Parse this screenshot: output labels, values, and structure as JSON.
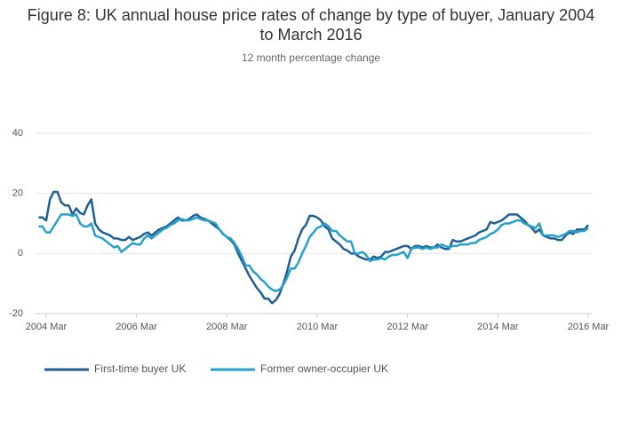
{
  "chart_data": {
    "type": "line",
    "title": "Figure 8: UK annual house price rates of change by type of buyer, January 2004 to March 2016",
    "subtitle": "12 month percentage change",
    "x": [
      "2004 Jan",
      "2004 Feb",
      "2004 Mar",
      "2004 Apr",
      "2004 May",
      "2004 Jun",
      "2004 Jul",
      "2004 Aug",
      "2004 Sep",
      "2004 Oct",
      "2004 Nov",
      "2004 Dec",
      "2005 Jan",
      "2005 Feb",
      "2005 Mar",
      "2005 Apr",
      "2005 May",
      "2005 Jun",
      "2005 Jul",
      "2005 Aug",
      "2005 Sep",
      "2005 Oct",
      "2005 Nov",
      "2005 Dec",
      "2006 Jan",
      "2006 Feb",
      "2006 Mar",
      "2006 Apr",
      "2006 May",
      "2006 Jun",
      "2006 Jul",
      "2006 Aug",
      "2006 Sep",
      "2006 Oct",
      "2006 Nov",
      "2006 Dec",
      "2007 Jan",
      "2007 Feb",
      "2007 Mar",
      "2007 Apr",
      "2007 May",
      "2007 Jun",
      "2007 Jul",
      "2007 Aug",
      "2007 Sep",
      "2007 Oct",
      "2007 Nov",
      "2007 Dec",
      "2008 Jan",
      "2008 Feb",
      "2008 Mar",
      "2008 Apr",
      "2008 May",
      "2008 Jun",
      "2008 Jul",
      "2008 Aug",
      "2008 Sep",
      "2008 Oct",
      "2008 Nov",
      "2008 Dec",
      "2009 Jan",
      "2009 Feb",
      "2009 Mar",
      "2009 Apr",
      "2009 May",
      "2009 Jun",
      "2009 Jul",
      "2009 Aug",
      "2009 Sep",
      "2009 Oct",
      "2009 Nov",
      "2009 Dec",
      "2010 Jan",
      "2010 Feb",
      "2010 Mar",
      "2010 Apr",
      "2010 May",
      "2010 Jun",
      "2010 Jul",
      "2010 Aug",
      "2010 Sep",
      "2010 Oct",
      "2010 Nov",
      "2010 Dec",
      "2011 Jan",
      "2011 Feb",
      "2011 Mar",
      "2011 Apr",
      "2011 May",
      "2011 Jun",
      "2011 Jul",
      "2011 Aug",
      "2011 Sep",
      "2011 Oct",
      "2011 Nov",
      "2011 Dec",
      "2012 Jan",
      "2012 Feb",
      "2012 Mar",
      "2012 Apr",
      "2012 May",
      "2012 Jun",
      "2012 Jul",
      "2012 Aug",
      "2012 Sep",
      "2012 Oct",
      "2012 Nov",
      "2012 Dec",
      "2013 Jan",
      "2013 Feb",
      "2013 Mar",
      "2013 Apr",
      "2013 May",
      "2013 Jun",
      "2013 Jul",
      "2013 Aug",
      "2013 Sep",
      "2013 Oct",
      "2013 Nov",
      "2013 Dec",
      "2014 Jan",
      "2014 Feb",
      "2014 Mar",
      "2014 Apr",
      "2014 May",
      "2014 Jun",
      "2014 Jul",
      "2014 Aug",
      "2014 Sep",
      "2014 Oct",
      "2014 Nov",
      "2014 Dec",
      "2015 Jan",
      "2015 Feb",
      "2015 Mar",
      "2015 Apr",
      "2015 May",
      "2015 Jun",
      "2015 Jul",
      "2015 Aug",
      "2015 Sep",
      "2015 Oct",
      "2015 Nov",
      "2015 Dec",
      "2016 Jan",
      "2016 Feb",
      "2016 Mar"
    ],
    "xticks": [
      "2004 Mar",
      "2006 Mar",
      "2008 Mar",
      "2010 Mar",
      "2012 Mar",
      "2014 Mar",
      "2016 Mar"
    ],
    "ylim": [
      -20,
      40
    ],
    "yticks": [
      -20,
      0,
      20,
      40
    ],
    "grid": true,
    "series": [
      {
        "name": "First-time buyer UK",
        "color": "#206095",
        "values": [
          12,
          12,
          11,
          18,
          20.5,
          20.5,
          17,
          16,
          16,
          13,
          15,
          13.5,
          13,
          16,
          18,
          10,
          8,
          7,
          6.5,
          6,
          5,
          5,
          4.5,
          4.5,
          5.5,
          4.5,
          5,
          5.5,
          6.5,
          7,
          6,
          7,
          8,
          8.5,
          9,
          10,
          11,
          12,
          11,
          11,
          11.5,
          12.5,
          13,
          12,
          11.5,
          11,
          10,
          9,
          8,
          6.5,
          5.5,
          4.5,
          3,
          0,
          -2.5,
          -5,
          -7.5,
          -9.5,
          -11.5,
          -13,
          -15,
          -15,
          -16.5,
          -15.5,
          -13.5,
          -10,
          -6,
          -1,
          1,
          5,
          8,
          9.5,
          12.5,
          12.5,
          12,
          11,
          9,
          8,
          5,
          4,
          3,
          1.5,
          1,
          0,
          0,
          -1,
          -1.5,
          -2,
          -2,
          -1,
          -1.5,
          -1,
          0.5,
          0.5,
          1,
          1.5,
          2,
          2.5,
          2.5,
          1.5,
          2.5,
          2.5,
          2,
          2.5,
          2,
          2,
          3,
          2,
          1.5,
          1.5,
          4.5,
          4,
          4,
          4.5,
          5,
          5.5,
          6,
          7,
          7.5,
          8,
          10.5,
          10,
          10.5,
          11,
          12,
          13,
          13,
          13,
          12,
          11,
          9.5,
          8.5,
          7,
          8,
          6,
          5.5,
          5,
          5,
          4.5,
          4.5,
          6,
          7,
          6.5,
          8,
          8,
          8,
          9.5
        ]
      },
      {
        "name": "Former owner-occupier UK",
        "color": "#27a0cc",
        "values": [
          9,
          9,
          7,
          7,
          9,
          11,
          13,
          13,
          13,
          12.5,
          13,
          10,
          9,
          9,
          10,
          6,
          5.5,
          5,
          4,
          3,
          2,
          2.5,
          0.5,
          1.5,
          2.5,
          3.5,
          3,
          3,
          5,
          6,
          5,
          6,
          7,
          8,
          8.5,
          9.5,
          10,
          11,
          11.5,
          11,
          11,
          11.5,
          12,
          11.5,
          11,
          11,
          10.5,
          10,
          8,
          6.5,
          5.5,
          5,
          3.5,
          1.5,
          -1,
          -4,
          -4,
          -6,
          -7,
          -8.5,
          -9.5,
          -11,
          -12,
          -12.5,
          -12,
          -10.5,
          -8,
          -5,
          -5,
          -3,
          0,
          2.5,
          5.5,
          7,
          8.5,
          9,
          10,
          9,
          7.5,
          7.5,
          6,
          5,
          4,
          4,
          0,
          0,
          0.5,
          -0.5,
          -2.5,
          -2,
          -2,
          -1.5,
          -2,
          -1,
          -0.5,
          -0.5,
          0,
          0.5,
          -1.5,
          1.5,
          2,
          2,
          1.5,
          2,
          1.5,
          2,
          2,
          3,
          2.5,
          2,
          2.5,
          2.5,
          3,
          3,
          3,
          3.5,
          3.5,
          4.5,
          5,
          5.5,
          6.5,
          7,
          8,
          9.5,
          10,
          10,
          10.5,
          11,
          11,
          10,
          9.5,
          9,
          8.5,
          10,
          6,
          6,
          6,
          6,
          5.5,
          6,
          6.5,
          7.5,
          7.5,
          7,
          7.5,
          7.5,
          8.5
        ]
      }
    ]
  }
}
